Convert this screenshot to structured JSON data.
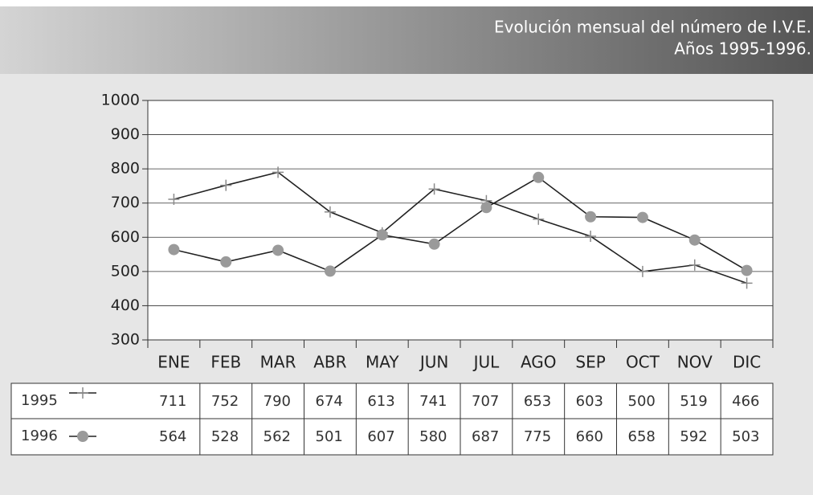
{
  "chart_data": {
    "type": "line",
    "title": "Evolución mensual del número de I.V.E.",
    "subtitle": "Años 1995-1996.",
    "categories": [
      "ENE",
      "FEB",
      "MAR",
      "ABR",
      "MAY",
      "JUN",
      "JUL",
      "AGO",
      "SEP",
      "OCT",
      "NOV",
      "DIC"
    ],
    "series": [
      {
        "name": "1995",
        "color": "#222222",
        "marker": "plus",
        "marker_color": "#8a8a8a",
        "values": [
          711,
          752,
          790,
          674,
          613,
          741,
          707,
          653,
          603,
          500,
          519,
          466
        ]
      },
      {
        "name": "1996",
        "color": "#222222",
        "marker": "circle",
        "marker_color": "#9a9a9a",
        "values": [
          564,
          528,
          562,
          501,
          607,
          580,
          687,
          775,
          660,
          658,
          592,
          503
        ]
      }
    ],
    "ylim": [
      300,
      1000
    ],
    "yticks": [
      300,
      400,
      500,
      600,
      700,
      800,
      900,
      1000
    ],
    "grid": true
  }
}
